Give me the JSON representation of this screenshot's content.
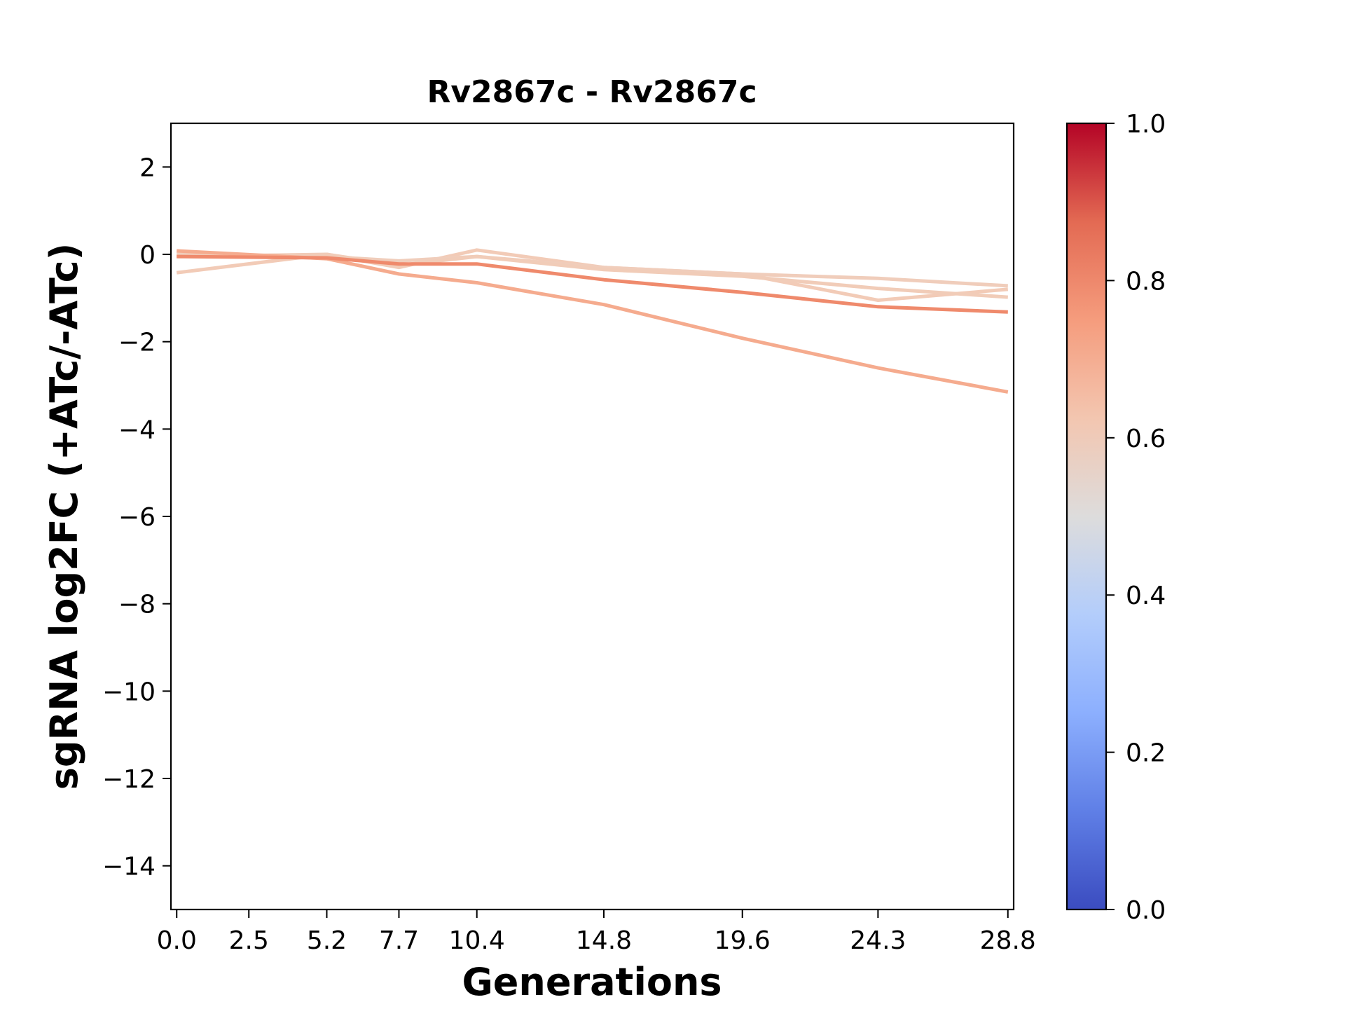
{
  "chart_data": {
    "type": "line",
    "title": "Rv2867c - Rv2867c",
    "xlabel": "Generations",
    "ylabel": "sgRNA log2FC (+ATc/-ATc)",
    "x": [
      0.0,
      2.5,
      5.2,
      7.7,
      10.4,
      14.8,
      19.6,
      24.3,
      28.8
    ],
    "x_tick_labels": [
      "0.0",
      "2.5",
      "5.2",
      "7.7",
      "10.4",
      "14.8",
      "19.6",
      "24.3",
      "28.8"
    ],
    "y_ticks": [
      2,
      0,
      -2,
      -4,
      -6,
      -8,
      -10,
      -12,
      -14
    ],
    "y_tick_labels": [
      "2",
      "0",
      "−2",
      "−4",
      "−6",
      "−8",
      "−10",
      "−12",
      "−14"
    ],
    "xlim": [
      -0.2,
      29.0
    ],
    "ylim": [
      -15,
      3
    ],
    "grid": false,
    "colormap": "coolwarm",
    "colorbar": {
      "range": [
        0.0,
        1.0
      ],
      "ticks": [
        0.0,
        0.2,
        0.4,
        0.6,
        0.8,
        1.0
      ],
      "tick_labels": [
        "0.0",
        "0.2",
        "0.4",
        "0.6",
        "0.8",
        "1.0"
      ],
      "stops": [
        {
          "at": 0.0,
          "color": "#3b4cc0"
        },
        {
          "at": 0.125,
          "color": "#5f7fe6"
        },
        {
          "at": 0.25,
          "color": "#8caffe"
        },
        {
          "at": 0.375,
          "color": "#b3cdfb"
        },
        {
          "at": 0.5,
          "color": "#dddcdc"
        },
        {
          "at": 0.625,
          "color": "#f3c6b0"
        },
        {
          "at": 0.75,
          "color": "#f59c7d"
        },
        {
          "at": 0.875,
          "color": "#e36a53"
        },
        {
          "at": 1.0,
          "color": "#b40426"
        }
      ]
    },
    "series": [
      {
        "color": "#f2cbb7",
        "values": [
          -0.42,
          null,
          0.0,
          -0.3,
          0.1,
          -0.3,
          -0.45,
          -1.05,
          -0.8
        ]
      },
      {
        "color": "#f0cdbb",
        "values": [
          0.0,
          null,
          -0.05,
          -0.15,
          -0.05,
          -0.3,
          -0.45,
          -0.55,
          -0.72
        ]
      },
      {
        "color": "#f1ccb8",
        "values": [
          -0.05,
          null,
          0.0,
          -0.25,
          -0.05,
          -0.35,
          -0.5,
          -0.78,
          -0.98
        ]
      },
      {
        "color": "#f5ab8e",
        "values": [
          0.08,
          null,
          -0.1,
          -0.45,
          -0.65,
          -1.15,
          -1.92,
          -2.6,
          -3.15
        ]
      },
      {
        "color": "#ef8a6c",
        "values": [
          -0.05,
          null,
          -0.08,
          -0.22,
          -0.22,
          -0.58,
          -0.87,
          -1.2,
          -1.32
        ]
      }
    ]
  }
}
